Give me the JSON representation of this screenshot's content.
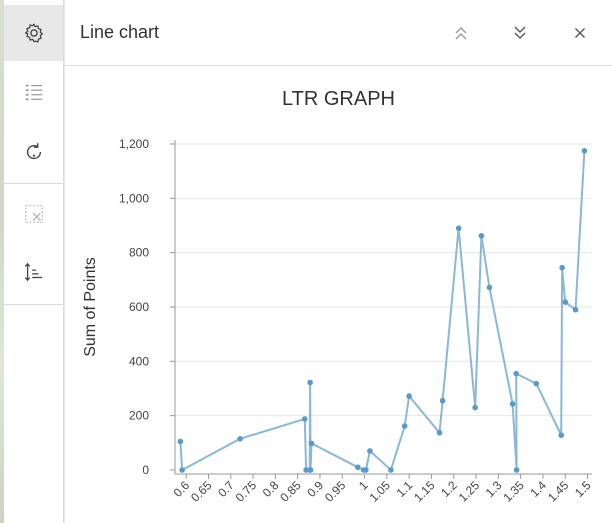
{
  "toolbar": {
    "items": [
      {
        "name": "settings",
        "icon": "gear-icon",
        "active": true
      },
      {
        "name": "legend",
        "icon": "list-icon",
        "active": false
      },
      {
        "name": "refresh",
        "icon": "rotate-icon",
        "active": false
      },
      {
        "name": "select",
        "icon": "selection-icon",
        "active": false
      },
      {
        "name": "sort",
        "icon": "sort-icon",
        "active": false
      }
    ]
  },
  "header": {
    "title": "Line chart",
    "buttons": [
      "chevrons-up-icon",
      "chevrons-down-icon",
      "close-icon"
    ]
  },
  "colors": {
    "series": "#8ab8d6",
    "point": "#5b9ac4",
    "grid": "#e6e6e6",
    "axis": "#999999"
  },
  "chart_data": {
    "type": "line",
    "title": "LTR GRAPH",
    "xlabel": "",
    "ylabel": "Sum of Points",
    "ylim": [
      0,
      1200
    ],
    "yticks": [
      0,
      200,
      400,
      600,
      800,
      1000,
      1200
    ],
    "ytick_labels": [
      "0",
      "200",
      "400",
      "600",
      "800",
      "1,000",
      "1,200"
    ],
    "xlim": [
      0.575,
      1.51
    ],
    "xticks": [
      0.6,
      0.65,
      0.7,
      0.75,
      0.8,
      0.85,
      0.9,
      0.95,
      1,
      1.05,
      1.1,
      1.15,
      1.2,
      1.25,
      1.3,
      1.35,
      1.4,
      1.45,
      1.5
    ],
    "xtick_labels": [
      "0.6",
      "0.65",
      "0.7",
      "0.75",
      "0.8",
      "0.85",
      "0.9",
      "0.95",
      "1",
      "1.05",
      "1.1",
      "1.15",
      "1.2",
      "1.25",
      "1.3",
      "1.35",
      "1.4",
      "1.45",
      "1.5"
    ],
    "grid": true,
    "series": [
      {
        "x": [
          0.587,
          0.591,
          0.721,
          0.866,
          0.869,
          0.877,
          0.878,
          0.879,
          0.881,
          0.985,
          0.998,
          1.003,
          1.012,
          1.059,
          1.09,
          1.1,
          1.168,
          1.175,
          1.211,
          1.248,
          1.262,
          1.28,
          1.332,
          1.341,
          1.34,
          1.385,
          1.441,
          1.443,
          1.45,
          1.473,
          1.493
        ],
        "y": [
          105,
          0,
          115,
          188,
          0,
          0,
          322,
          0,
          98,
          10,
          0,
          0,
          70,
          0,
          162,
          272,
          137,
          255,
          890,
          230,
          862,
          672,
          243,
          0,
          355,
          318,
          128,
          745,
          618,
          590,
          1175
        ]
      }
    ]
  }
}
